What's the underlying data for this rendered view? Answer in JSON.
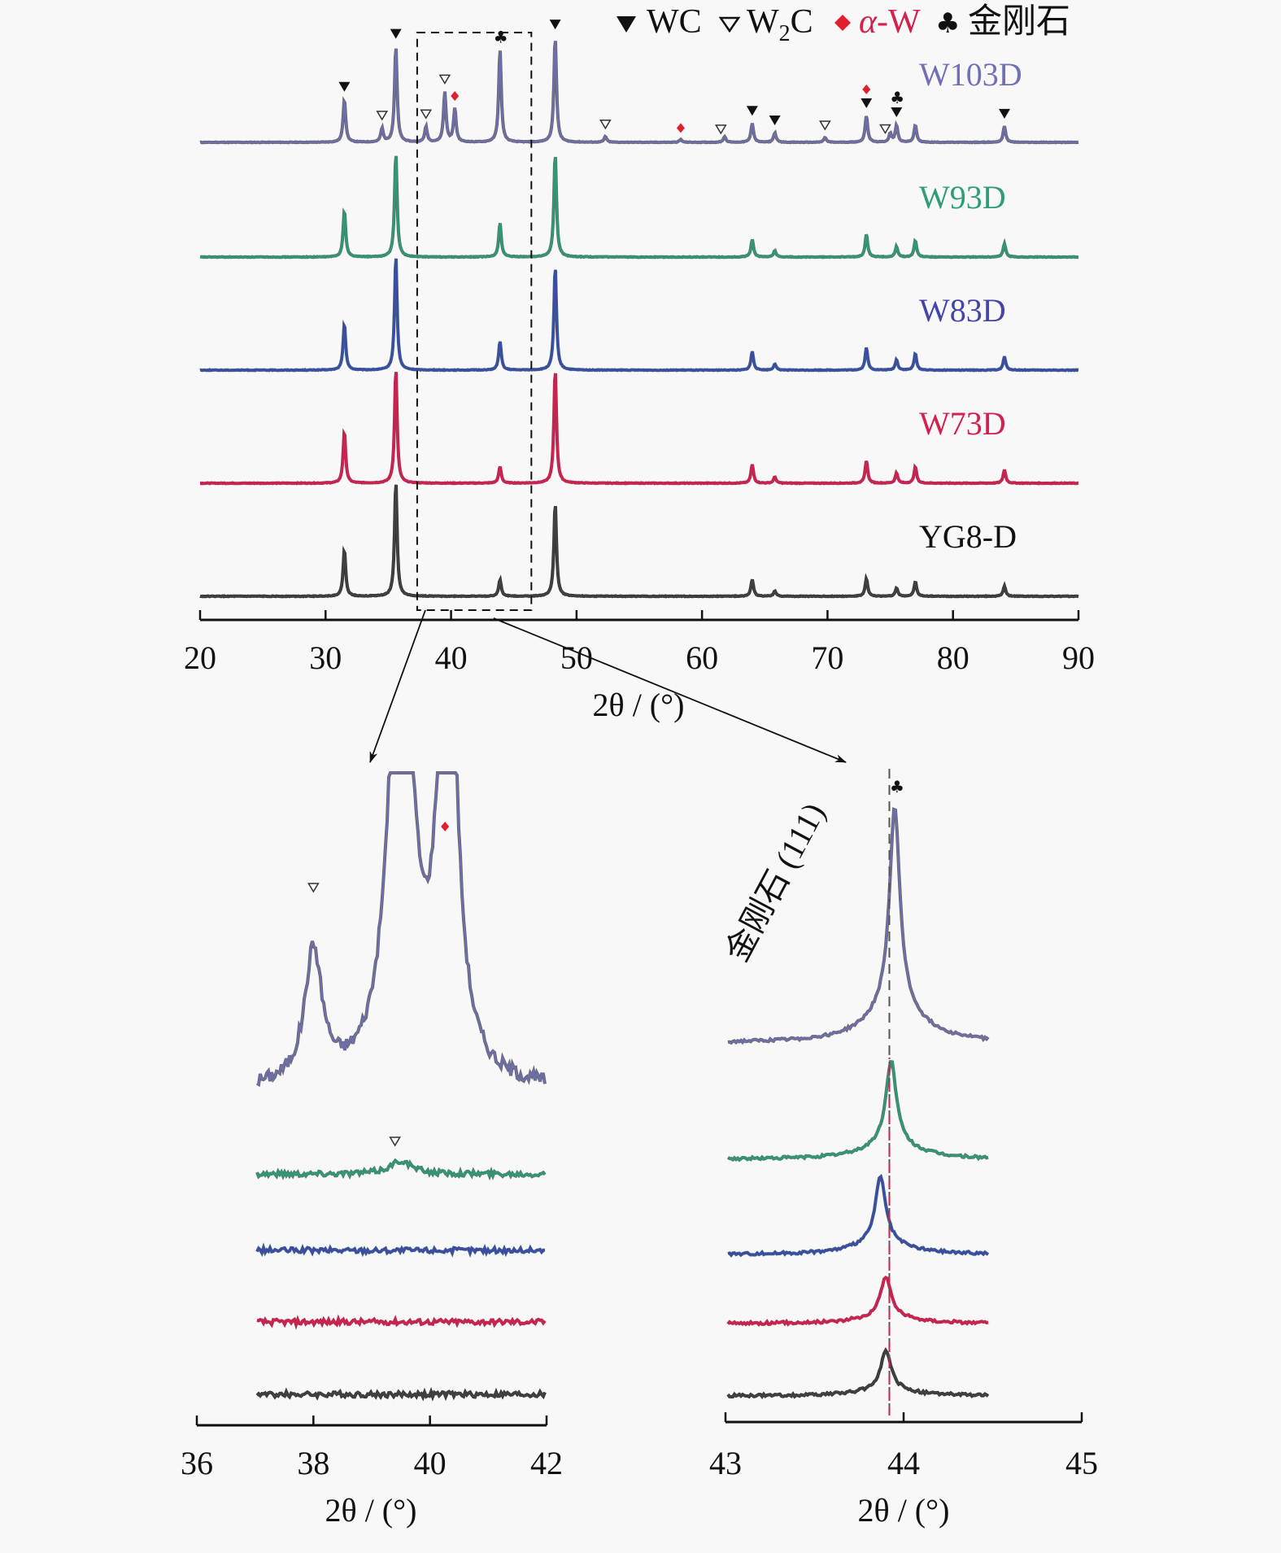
{
  "chart_data": [
    {
      "id": "main",
      "type": "line",
      "title": "",
      "xlabel": "2θ / (°)",
      "ylabel": "",
      "xlim": [
        20,
        90
      ],
      "xticks": [
        20,
        30,
        40,
        50,
        60,
        70,
        80,
        90
      ],
      "grid": false,
      "legend": {
        "placement": "top-right",
        "entries": [
          {
            "symbol": "▼",
            "label": "WC",
            "color": "#111111"
          },
          {
            "symbol": "▽",
            "label": "W₂C",
            "color": "#111111"
          },
          {
            "symbol": "◆",
            "label": "α-W",
            "color": "#e0202a"
          },
          {
            "symbol": "♣",
            "label": "金刚石",
            "color": "#111111"
          }
        ]
      },
      "zoom_box": {
        "x_range": [
          37.3,
          46.4
        ]
      },
      "series": [
        {
          "name": "W103D",
          "color": "#7070b8",
          "color2": "#666666",
          "peaks": [
            [
              31.5,
              0.45
            ],
            [
              34.5,
              0.14
            ],
            [
              35.6,
              1.0
            ],
            [
              38.0,
              0.16
            ],
            [
              39.5,
              0.52
            ],
            [
              40.3,
              0.35
            ],
            [
              43.9,
              0.97
            ],
            [
              48.3,
              1.1
            ],
            [
              52.3,
              0.06
            ],
            [
              58.3,
              0.03
            ],
            [
              61.8,
              0.06
            ],
            [
              64.0,
              0.2
            ],
            [
              65.8,
              0.1
            ],
            [
              69.8,
              0.05
            ],
            [
              73.1,
              0.28
            ],
            [
              75.0,
              0.09
            ],
            [
              75.5,
              0.18
            ],
            [
              77.0,
              0.18
            ],
            [
              84.1,
              0.17
            ]
          ],
          "markers": [
            {
              "x": 31.5,
              "symbol": "WC"
            },
            {
              "x": 34.5,
              "symbol": "W2C"
            },
            {
              "x": 35.6,
              "symbol": "WC"
            },
            {
              "x": 38.0,
              "symbol": "W2C"
            },
            {
              "x": 39.5,
              "symbol": "W2C"
            },
            {
              "x": 40.3,
              "symbol": "alpha-W"
            },
            {
              "x": 43.9,
              "symbol": "diamond"
            },
            {
              "x": 48.3,
              "symbol": "WC"
            },
            {
              "x": 52.3,
              "symbol": "W2C"
            },
            {
              "x": 58.3,
              "symbol": "alpha-W"
            },
            {
              "x": 61.5,
              "symbol": "W2C"
            },
            {
              "x": 64.0,
              "symbol": "WC"
            },
            {
              "x": 65.8,
              "symbol": "WC"
            },
            {
              "x": 69.8,
              "symbol": "W2C"
            },
            {
              "x": 73.1,
              "symbol": "WC"
            },
            {
              "x": 73.1,
              "symbol": "alpha-W"
            },
            {
              "x": 74.6,
              "symbol": "W2C"
            },
            {
              "x": 75.5,
              "symbol": "WC"
            },
            {
              "x": 75.5,
              "symbol": "diamond"
            },
            {
              "x": 84.1,
              "symbol": "WC"
            }
          ]
        },
        {
          "name": "W93D",
          "color": "#2e9c78",
          "color2": "#4a7a6a",
          "peaks": [
            [
              31.5,
              0.45
            ],
            [
              35.6,
              1.0
            ],
            [
              43.9,
              0.33
            ],
            [
              48.3,
              1.0
            ],
            [
              64.0,
              0.17
            ],
            [
              65.8,
              0.06
            ],
            [
              73.1,
              0.22
            ],
            [
              75.5,
              0.1
            ],
            [
              77.0,
              0.16
            ],
            [
              84.1,
              0.13
            ]
          ]
        },
        {
          "name": "W83D",
          "color": "#4444aa",
          "color2": "#336688",
          "peaks": [
            [
              31.5,
              0.45
            ],
            [
              35.6,
              1.1
            ],
            [
              43.9,
              0.28
            ],
            [
              48.3,
              1.0
            ],
            [
              64.0,
              0.18
            ],
            [
              65.8,
              0.06
            ],
            [
              73.1,
              0.22
            ],
            [
              75.5,
              0.1
            ],
            [
              77.0,
              0.16
            ],
            [
              84.1,
              0.13
            ]
          ]
        },
        {
          "name": "W73D",
          "color": "#d42050",
          "color2": "#aa3050",
          "peaks": [
            [
              31.5,
              0.5
            ],
            [
              35.6,
              1.1
            ],
            [
              43.9,
              0.16
            ],
            [
              48.3,
              1.1
            ],
            [
              64.0,
              0.18
            ],
            [
              65.8,
              0.06
            ],
            [
              73.1,
              0.22
            ],
            [
              75.5,
              0.1
            ],
            [
              77.0,
              0.16
            ],
            [
              84.1,
              0.13
            ]
          ]
        },
        {
          "name": "YG8-D",
          "color": "#444444",
          "color2": "#333333",
          "peaks": [
            [
              31.5,
              0.45
            ],
            [
              35.6,
              1.1
            ],
            [
              43.9,
              0.16
            ],
            [
              48.3,
              0.9
            ],
            [
              64.0,
              0.16
            ],
            [
              65.8,
              0.05
            ],
            [
              73.1,
              0.17
            ],
            [
              75.5,
              0.08
            ],
            [
              77.0,
              0.14
            ],
            [
              84.1,
              0.1
            ]
          ]
        }
      ]
    },
    {
      "id": "inset-left",
      "type": "line",
      "xlabel": "2θ / (°)",
      "xlim": [
        36,
        42
      ],
      "xticks": [
        36,
        38,
        40,
        42
      ],
      "series": [
        {
          "name": "W103D",
          "peaks": [
            [
              38.0,
              0.6
            ],
            [
              39.5,
              2.5
            ],
            [
              40.3,
              2.5
            ]
          ],
          "markers": [
            {
              "x": 38.0,
              "symbol": "W2C"
            },
            {
              "x": 40.3,
              "symbol": "alpha-W"
            }
          ]
        },
        {
          "name": "W93D",
          "peaks": [
            [
              39.5,
              0.06
            ]
          ],
          "markers": [
            {
              "x": 39.4,
              "symbol": "W2C"
            }
          ]
        },
        {
          "name": "W83D",
          "peaks": []
        },
        {
          "name": "W73D",
          "peaks": []
        },
        {
          "name": "YG8-D",
          "peaks": []
        }
      ]
    },
    {
      "id": "inset-right",
      "type": "line",
      "xlabel": "2θ / (°)",
      "xlim": [
        43,
        45
      ],
      "xticks": [
        43,
        44,
        45
      ],
      "annotation": "金刚石 (111)",
      "reference_line_x": 43.92,
      "series": [
        {
          "name": "W103D",
          "peak_x": 43.95,
          "height": 1.0
        },
        {
          "name": "W93D",
          "peak_x": 43.93,
          "height": 0.42
        },
        {
          "name": "W83D",
          "peak_x": 43.87,
          "height": 0.33
        },
        {
          "name": "W73D",
          "peak_x": 43.9,
          "height": 0.2
        },
        {
          "name": "YG8-D",
          "peak_x": 43.9,
          "height": 0.19
        }
      ],
      "markers": [
        {
          "x": 43.95,
          "symbol": "diamond"
        }
      ]
    }
  ],
  "labels": {
    "xlabel_main": "2θ / (°)",
    "xlabel_left": "2θ / (°)",
    "xlabel_right": "2θ / (°)",
    "legend_wc": "WC",
    "legend_w2c_base": "W",
    "legend_w2c_sub": "2",
    "legend_w2c_end": "C",
    "legend_alpha": "α",
    "legend_alpha_rest": "-W",
    "legend_diamond": "金刚石",
    "annotation_right": "金刚石 (111)"
  }
}
